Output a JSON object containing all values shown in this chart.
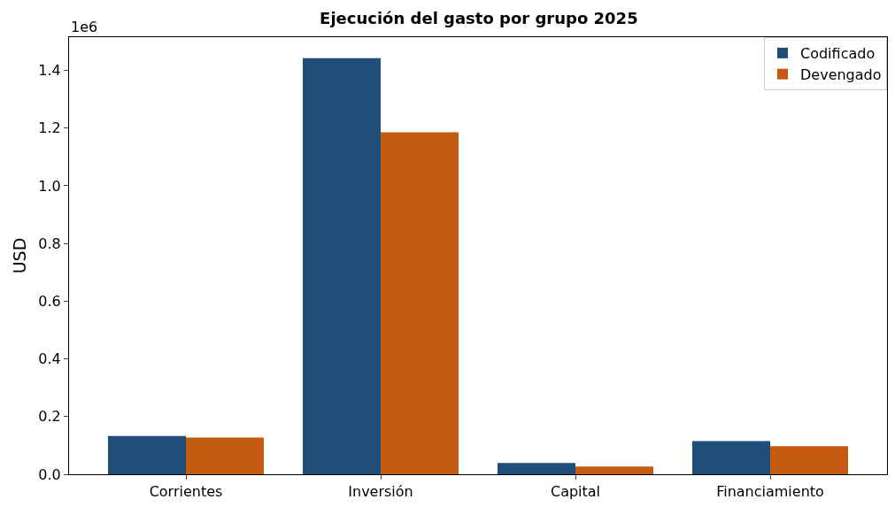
{
  "chart_data": {
    "type": "bar",
    "title": "Ejecución del gasto por grupo 2025",
    "ylabel": "USD",
    "categories": [
      "Corrientes",
      "Inversión",
      "Capital",
      "Financiamiento"
    ],
    "series": [
      {
        "name": "Codificado",
        "color": "#1f4e79",
        "values": [
          0.133,
          1.442,
          0.039,
          0.115
        ]
      },
      {
        "name": "Devengado",
        "color": "#c55a11",
        "values": [
          0.127,
          1.185,
          0.027,
          0.097
        ]
      }
    ],
    "ylim": [
      0,
      1.515
    ],
    "yticks": [
      {
        "value": 0,
        "label": "0.0"
      },
      0.2,
      0.4,
      0.6,
      0.8,
      {
        "value": 1,
        "label": "1.0"
      },
      1.2,
      1.4
    ],
    "annotations": [
      "1e6"
    ],
    "legend": "top right"
  }
}
